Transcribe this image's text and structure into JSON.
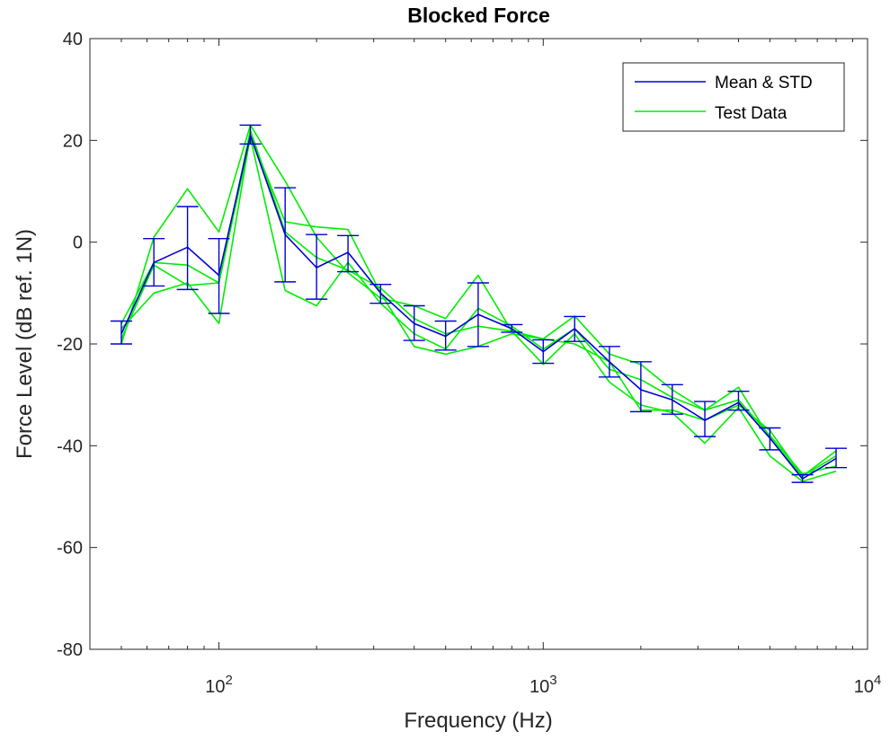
{
  "chart_data": {
    "type": "line",
    "title": "Blocked Force",
    "xlabel": "Frequency (Hz)",
    "ylabel": "Force Level (dB ref. 1N)",
    "xscale": "log",
    "xlim": [
      40,
      10000
    ],
    "ylim": [
      -80,
      40
    ],
    "yticks": [
      -80,
      -60,
      -40,
      -20,
      0,
      20,
      40
    ],
    "xticks": [
      {
        "value": 100,
        "base": "10",
        "exp": "2"
      },
      {
        "value": 1000,
        "base": "10",
        "exp": "3"
      },
      {
        "value": 10000,
        "base": "10",
        "exp": "4"
      }
    ],
    "grid": false,
    "legend_position": "top-right",
    "colors": {
      "mean": "#0000d6",
      "test": "#00ee00",
      "axis": "#262626"
    },
    "x": [
      50,
      63,
      80,
      100,
      125,
      160,
      200,
      250,
      315,
      400,
      500,
      630,
      800,
      1000,
      1250,
      1600,
      2000,
      2500,
      3150,
      4000,
      5000,
      6300,
      8000
    ],
    "mean_std": {
      "name": "Mean & STD",
      "mean": [
        -18,
        -4,
        -1,
        -6.5,
        21,
        1.5,
        -5,
        -2,
        -10,
        -16,
        -18.5,
        -14.2,
        -17,
        -21.5,
        -17,
        -23.5,
        -29,
        -31,
        -35,
        -31.5,
        -38.5,
        -46.5,
        -42.5
      ],
      "upper": [
        -15.5,
        0.7,
        7,
        0.7,
        23,
        10.7,
        1.5,
        1.3,
        -8.3,
        -12.5,
        -15.5,
        -8,
        -16.2,
        -19.2,
        -14.6,
        -20.5,
        -23.5,
        -28,
        -31.3,
        -29.3,
        -36.5,
        -45.7,
        -40.5
      ],
      "lower": [
        -20,
        -8.6,
        -9.3,
        -14,
        19.3,
        -7.8,
        -11.2,
        -5.8,
        -12,
        -19.3,
        -21.2,
        -20.5,
        -17.7,
        -23.8,
        -19.5,
        -26.5,
        -33.3,
        -33.8,
        -38.2,
        -33,
        -40.8,
        -47.2,
        -44.3
      ]
    },
    "series": [
      {
        "name": "Test Data",
        "values": [
          -20,
          1,
          10.5,
          2,
          23,
          12,
          1,
          -6,
          -11,
          -12.5,
          -15,
          -6.5,
          -17.5,
          -19,
          -14.5,
          -22,
          -24,
          -29,
          -33,
          -28.5,
          -38.5,
          -46,
          -41
        ]
      },
      {
        "values": [
          -16,
          -4,
          -4.5,
          -8,
          20.5,
          -9.5,
          -12.5,
          -4,
          -12,
          -18,
          -21,
          -13,
          -16.5,
          -21,
          -17,
          -25,
          -27,
          -30.5,
          -33,
          -31,
          -38,
          -45.5,
          -44
        ]
      },
      {
        "values": [
          -17,
          -10,
          -8,
          -16,
          21,
          4,
          3,
          2.5,
          -10,
          -20.5,
          -22,
          -20.5,
          -18,
          -19,
          -20,
          -23.5,
          -33,
          -33,
          -35,
          -32,
          -37,
          -46,
          -42
        ]
      },
      {
        "values": [
          -19,
          -4.5,
          -8.5,
          -8,
          22,
          2,
          -3,
          -5.5,
          -9,
          -15,
          -18,
          -16.5,
          -17.5,
          -24,
          -18,
          -27.5,
          -32,
          -33.5,
          -39.5,
          -32.5,
          -42,
          -47,
          -45
        ]
      }
    ]
  },
  "legend": {
    "mean_label": "Mean & STD",
    "test_label": "Test Data"
  }
}
